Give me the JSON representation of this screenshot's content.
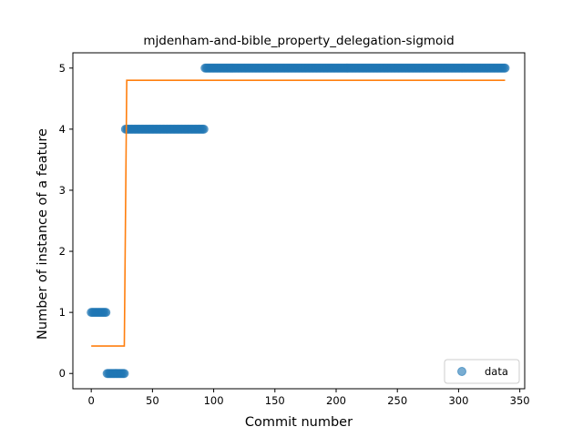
{
  "chart_data": {
    "type": "scatter",
    "title": "mjdenham-and-bible_property_delegation-sigmoid",
    "xlabel": "Commit number",
    "ylabel": "Number of instance of a feature",
    "xlim": [
      -15,
      354
    ],
    "ylim": [
      -0.25,
      5.25
    ],
    "xticks": [
      0,
      50,
      100,
      150,
      200,
      250,
      300,
      350
    ],
    "yticks": [
      0,
      1,
      2,
      3,
      4,
      5
    ],
    "grid": false,
    "legend_position": "lower-right",
    "series": [
      {
        "name": "data",
        "kind": "scatter",
        "color": "#1f77b4",
        "segments": [
          {
            "x_start": 0,
            "x_end": 12,
            "y": 1
          },
          {
            "x_start": 13,
            "x_end": 27,
            "y": 0
          },
          {
            "x_start": 28,
            "x_end": 92,
            "y": 4
          },
          {
            "x_start": 93,
            "x_end": 338,
            "y": 5
          }
        ]
      },
      {
        "kind": "line",
        "color": "#ff7f0e",
        "x": [
          0,
          27,
          29,
          338
        ],
        "y": [
          0.45,
          0.45,
          4.8,
          4.8
        ]
      }
    ]
  }
}
